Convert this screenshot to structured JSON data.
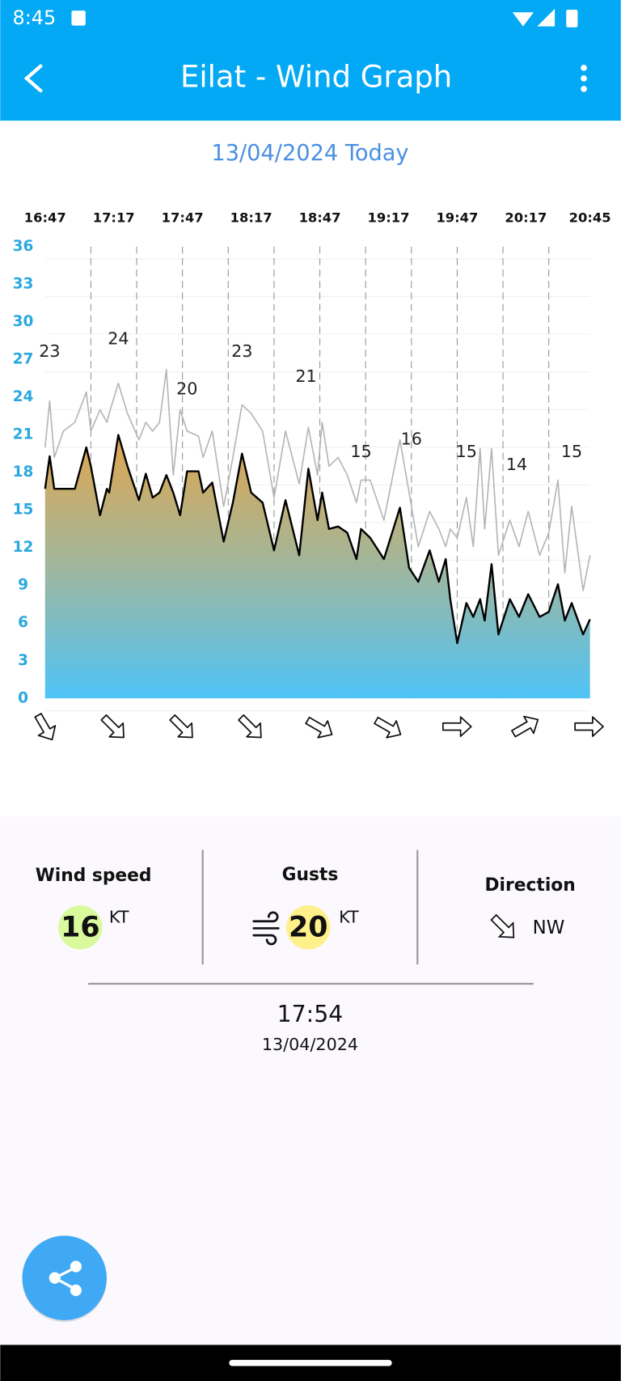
{
  "status_bar": {
    "time": "8:45"
  },
  "header": {
    "title": "Eilat  - Wind Graph"
  },
  "date_label": "13/04/2024 Today",
  "chart_data": {
    "type": "line",
    "x": [
      1007,
      1009,
      1011,
      1015,
      1020,
      1025,
      1027,
      1031,
      1034,
      1035,
      1039,
      1043,
      1048,
      1051,
      1054,
      1057,
      1060,
      1063,
      1066,
      1069,
      1074,
      1076,
      1080,
      1085,
      1089,
      1093,
      1097,
      1102,
      1107,
      1112,
      1118,
      1122,
      1126,
      1128,
      1131,
      1135,
      1139,
      1143,
      1145,
      1149,
      1155,
      1162,
      1166,
      1170,
      1175,
      1179,
      1182,
      1184,
      1187,
      1191,
      1194,
      1197,
      1199,
      1202,
      1205,
      1210,
      1214,
      1218,
      1223,
      1227,
      1231,
      1234,
      1237,
      1242,
      1245
    ],
    "series": [
      {
        "name": "Gusts",
        "color": "#b5b5b5",
        "values": [
          20,
          23.7,
          19.2,
          21.3,
          22,
          24.4,
          21.3,
          23,
          22,
          22.7,
          25.1,
          22.7,
          20.6,
          22,
          21.3,
          22,
          26.2,
          17.8,
          23,
          21.3,
          20.9,
          19.2,
          21.3,
          15.3,
          19.2,
          23.4,
          22.7,
          21.3,
          16,
          21.3,
          17.1,
          21.6,
          17.8,
          22,
          18.5,
          19.2,
          17.8,
          15.6,
          17.4,
          17.4,
          14.2,
          20.6,
          16.4,
          12.1,
          14.9,
          13.5,
          12.1,
          13.5,
          12.8,
          16,
          12.1,
          19.9,
          13.5,
          19.9,
          11.4,
          14.2,
          12.1,
          14.9,
          11.4,
          13.2,
          17.4,
          10,
          15.3,
          8.6,
          11.4
        ]
      },
      {
        "name": "Wind speed",
        "color": "#000000",
        "values": [
          16.7,
          19.3,
          16.7,
          16.7,
          16.7,
          20,
          18.5,
          14.6,
          16.7,
          16.4,
          21,
          18.5,
          15.8,
          17.9,
          16,
          16.4,
          17.8,
          16.4,
          14.6,
          18.1,
          18.1,
          16.4,
          17.2,
          12.5,
          15.6,
          19.5,
          16.4,
          15.6,
          11.8,
          15.8,
          11.4,
          18.3,
          14.2,
          16.4,
          13.5,
          13.7,
          13.2,
          11.1,
          13.5,
          12.8,
          11.1,
          15.2,
          10.4,
          9.3,
          11.8,
          9.3,
          11.1,
          7.9,
          4.4,
          7.6,
          6.5,
          7.9,
          6.2,
          10.7,
          5.1,
          7.9,
          6.5,
          8.3,
          6.5,
          6.9,
          9.1,
          6.2,
          7.6,
          5.1,
          6.3
        ]
      }
    ],
    "peaks": [
      {
        "x": 1009,
        "value": 23
      },
      {
        "x": 1039,
        "value": 24
      },
      {
        "x": 1069,
        "value": 20
      },
      {
        "x": 1093,
        "value": 23
      },
      {
        "x": 1121,
        "value": 21
      },
      {
        "x": 1145,
        "value": 15
      },
      {
        "x": 1167,
        "value": 16
      },
      {
        "x": 1191,
        "value": 15
      },
      {
        "x": 1213,
        "value": 14
      },
      {
        "x": 1237,
        "value": 15
      }
    ],
    "xlim": [
      1007,
      1245
    ],
    "xticks": [
      {
        "value": 1007,
        "label": "16:47"
      },
      {
        "value": 1037,
        "label": "17:17"
      },
      {
        "value": 1067,
        "label": "17:47"
      },
      {
        "value": 1097,
        "label": "18:17"
      },
      {
        "value": 1127,
        "label": "18:47"
      },
      {
        "value": 1157,
        "label": "19:17"
      },
      {
        "value": 1187,
        "label": "19:47"
      },
      {
        "value": 1217,
        "label": "20:17"
      },
      {
        "value": 1245,
        "label": "20:45"
      }
    ],
    "xgrid": [
      1027,
      1047,
      1067,
      1087,
      1107,
      1127,
      1147,
      1167,
      1187,
      1207,
      1227
    ],
    "ylim": [
      0,
      36
    ],
    "yticks": [
      0,
      3,
      6,
      9,
      12,
      15,
      18,
      21,
      24,
      27,
      30,
      33,
      36
    ],
    "grid": true
  },
  "summary": {
    "wind_speed": {
      "label": "Wind speed",
      "value": 16,
      "unit": "KT"
    },
    "gusts": {
      "label": "Gusts",
      "value": 20,
      "unit": "KT"
    },
    "direction": {
      "label": "Direction",
      "value": "NW"
    },
    "time": "17:54",
    "date": "13/04/2024"
  }
}
